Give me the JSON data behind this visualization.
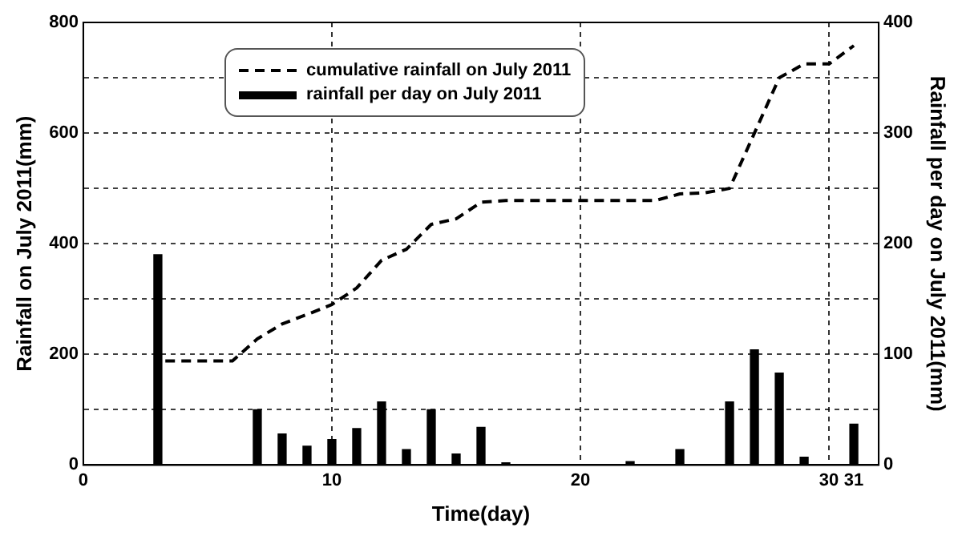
{
  "chart_data": {
    "type": "line",
    "xlabel": "Time(day)",
    "ylabel": "Rainfall on July 2011(mm)",
    "y2label": "Rainfall per day on July 2011(mm)",
    "xlim": [
      0,
      32
    ],
    "xticks": [
      0,
      10,
      20,
      30,
      31
    ],
    "ylim": [
      0,
      800
    ],
    "yticks": [
      0,
      {
        "value": 100,
        "label": null
      },
      200,
      {
        "value": 300,
        "label": null
      },
      400,
      {
        "value": 500,
        "label": null
      },
      600,
      {
        "value": 700,
        "label": null
      },
      800
    ],
    "y2lim": [
      0,
      400
    ],
    "y2ticks": [
      0,
      100,
      200,
      300,
      400
    ],
    "grid": true,
    "legend": "top",
    "series": [
      {
        "name": "cumulative rainfall on July 2011",
        "line_style": "dashed",
        "color": "#000000",
        "x": [
          3.3,
          6,
          7,
          8,
          9,
          10,
          11,
          12,
          13,
          14,
          15,
          16,
          17,
          23,
          24,
          25,
          26,
          27,
          28,
          29,
          30,
          31
        ],
        "values": [
          188,
          188,
          228,
          255,
          272,
          290,
          320,
          370,
          390,
          435,
          445,
          475,
          478,
          478,
          490,
          492,
          500,
          600,
          700,
          725,
          725,
          758
        ]
      },
      {
        "name": "rainfall per day on July 2011",
        "type": "bar",
        "axis": "y2",
        "color": "#000000",
        "x": [
          3,
          7,
          8,
          9,
          10,
          11,
          12,
          13,
          14,
          15,
          16,
          17,
          22,
          24,
          26,
          27,
          28,
          29,
          31
        ],
        "values": [
          190,
          50,
          28,
          17,
          23,
          33,
          57,
          14,
          50,
          10,
          34,
          2,
          3,
          14,
          57,
          104,
          83,
          7,
          37
        ]
      }
    ]
  }
}
